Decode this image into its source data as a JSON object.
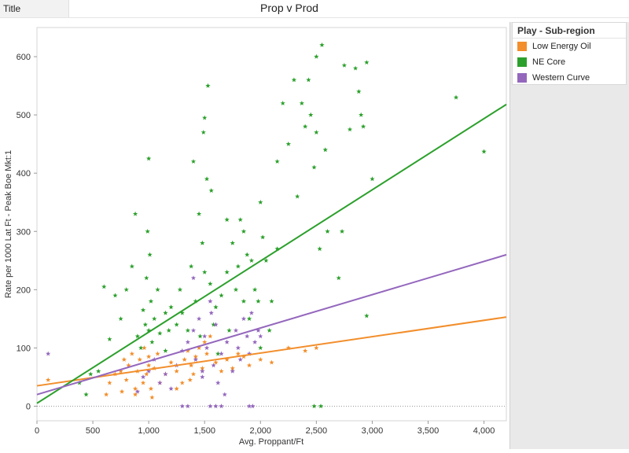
{
  "header": {
    "tab_label": "Title",
    "chart_title": "Prop v Prod"
  },
  "legend": {
    "title": "Play - Sub-region",
    "items": [
      {
        "label": "Low Energy Oil",
        "color": "#f28e2b"
      },
      {
        "label": "NE Core",
        "color": "#2ca02c"
      },
      {
        "label": "Western Curve",
        "color": "#9467bd"
      }
    ]
  },
  "chart_data": {
    "type": "scatter",
    "title": "Prop v Prod",
    "xlabel": "Avg. Proppant/Ft",
    "ylabel": "Rate per 1000 Lat Ft - Peak Boe Mkt:1",
    "xlim": [
      0,
      4200
    ],
    "ylim": [
      -25,
      650
    ],
    "x_ticks": [
      0,
      500,
      1000,
      1500,
      2000,
      2500,
      3000,
      3500,
      4000
    ],
    "x_tick_labels": [
      "0",
      "500",
      "1,000",
      "1,500",
      "2,000",
      "2,500",
      "3,000",
      "3,500",
      "4,000"
    ],
    "y_ticks": [
      0,
      100,
      200,
      300,
      400,
      500,
      600
    ],
    "y_tick_labels": [
      "0",
      "100",
      "200",
      "300",
      "400",
      "500",
      "600"
    ],
    "grid": false,
    "zero_reference_line": true,
    "marker": "star",
    "series": [
      {
        "name": "Low Energy Oil",
        "color": "#f28e2b",
        "trend": {
          "x0": 0,
          "y0": 35,
          "x1": 4200,
          "y1": 153
        },
        "points": [
          [
            100,
            45
          ],
          [
            620,
            20
          ],
          [
            650,
            40
          ],
          [
            700,
            55
          ],
          [
            750,
            60
          ],
          [
            780,
            80
          ],
          [
            800,
            45
          ],
          [
            820,
            70
          ],
          [
            850,
            90
          ],
          [
            880,
            30
          ],
          [
            900,
            60
          ],
          [
            920,
            80
          ],
          [
            950,
            40
          ],
          [
            960,
            100
          ],
          [
            980,
            55
          ],
          [
            1000,
            70
          ],
          [
            1000,
            85
          ],
          [
            1020,
            30
          ],
          [
            1050,
            65
          ],
          [
            1080,
            90
          ],
          [
            1100,
            40
          ],
          [
            1150,
            55
          ],
          [
            1200,
            75
          ],
          [
            1250,
            60
          ],
          [
            1300,
            40
          ],
          [
            1320,
            80
          ],
          [
            1350,
            95
          ],
          [
            1380,
            70
          ],
          [
            1400,
            55
          ],
          [
            1420,
            85
          ],
          [
            1450,
            100
          ],
          [
            1480,
            65
          ],
          [
            1500,
            110
          ],
          [
            1520,
            90
          ],
          [
            1550,
            120
          ],
          [
            1600,
            75
          ],
          [
            1650,
            60
          ],
          [
            1700,
            80
          ],
          [
            1750,
            65
          ],
          [
            1800,
            90
          ],
          [
            1850,
            85
          ],
          [
            1900,
            70
          ],
          [
            2000,
            80
          ],
          [
            2100,
            75
          ],
          [
            2250,
            100
          ],
          [
            2400,
            95
          ],
          [
            2500,
            100
          ],
          [
            1250,
            30
          ],
          [
            1370,
            45
          ],
          [
            1030,
            15
          ],
          [
            880,
            20
          ],
          [
            760,
            25
          ]
        ]
      },
      {
        "name": "NE Core",
        "color": "#2ca02c",
        "trend": {
          "x0": 0,
          "y0": 5,
          "x1": 4200,
          "y1": 518
        },
        "points": [
          [
            380,
            40
          ],
          [
            440,
            20
          ],
          [
            480,
            55
          ],
          [
            550,
            60
          ],
          [
            600,
            205
          ],
          [
            650,
            115
          ],
          [
            700,
            190
          ],
          [
            750,
            150
          ],
          [
            800,
            200
          ],
          [
            850,
            240
          ],
          [
            880,
            330
          ],
          [
            900,
            120
          ],
          [
            930,
            100
          ],
          [
            950,
            165
          ],
          [
            970,
            140
          ],
          [
            980,
            220
          ],
          [
            990,
            300
          ],
          [
            1000,
            425
          ],
          [
            1000,
            130
          ],
          [
            1010,
            260
          ],
          [
            1020,
            180
          ],
          [
            1030,
            110
          ],
          [
            1050,
            150
          ],
          [
            1080,
            200
          ],
          [
            1100,
            125
          ],
          [
            1150,
            95
          ],
          [
            1180,
            130
          ],
          [
            1200,
            170
          ],
          [
            1250,
            140
          ],
          [
            1280,
            200
          ],
          [
            1300,
            160
          ],
          [
            1350,
            130
          ],
          [
            1380,
            240
          ],
          [
            1400,
            420
          ],
          [
            1420,
            180
          ],
          [
            1450,
            330
          ],
          [
            1460,
            120
          ],
          [
            1480,
            280
          ],
          [
            1490,
            470
          ],
          [
            1500,
            495
          ],
          [
            1500,
            230
          ],
          [
            1520,
            390
          ],
          [
            1530,
            550
          ],
          [
            1550,
            210
          ],
          [
            1560,
            370
          ],
          [
            1580,
            140
          ],
          [
            1600,
            170
          ],
          [
            1620,
            90
          ],
          [
            1650,
            190
          ],
          [
            1700,
            230
          ],
          [
            1720,
            130
          ],
          [
            1750,
            280
          ],
          [
            1780,
            200
          ],
          [
            1800,
            240
          ],
          [
            1820,
            320
          ],
          [
            1850,
            180
          ],
          [
            1880,
            260
          ],
          [
            1900,
            150
          ],
          [
            1920,
            250
          ],
          [
            1950,
            200
          ],
          [
            1980,
            180
          ],
          [
            2000,
            100
          ],
          [
            2020,
            290
          ],
          [
            2050,
            250
          ],
          [
            2080,
            130
          ],
          [
            2100,
            180
          ],
          [
            2150,
            270
          ],
          [
            2200,
            520
          ],
          [
            2250,
            450
          ],
          [
            2300,
            560
          ],
          [
            2330,
            360
          ],
          [
            2370,
            520
          ],
          [
            2400,
            480
          ],
          [
            2430,
            560
          ],
          [
            2450,
            500
          ],
          [
            2480,
            410
          ],
          [
            2500,
            470
          ],
          [
            2500,
            600
          ],
          [
            2530,
            270
          ],
          [
            2550,
            620
          ],
          [
            2580,
            440
          ],
          [
            2600,
            300
          ],
          [
            2700,
            220
          ],
          [
            2730,
            300
          ],
          [
            2750,
            585
          ],
          [
            2800,
            475
          ],
          [
            2850,
            580
          ],
          [
            2880,
            540
          ],
          [
            2900,
            500
          ],
          [
            2920,
            480
          ],
          [
            2950,
            590
          ],
          [
            3000,
            390
          ],
          [
            2950,
            155
          ],
          [
            3750,
            530
          ],
          [
            4000,
            437
          ],
          [
            2480,
            0
          ],
          [
            2540,
            0
          ],
          [
            2000,
            350
          ],
          [
            1850,
            300
          ],
          [
            1150,
            160
          ],
          [
            1700,
            320
          ],
          [
            2150,
            420
          ]
        ]
      },
      {
        "name": "Western Curve",
        "color": "#9467bd",
        "trend": {
          "x0": 0,
          "y0": 20,
          "x1": 4200,
          "y1": 260
        },
        "points": [
          [
            100,
            90
          ],
          [
            900,
            25
          ],
          [
            950,
            50
          ],
          [
            1000,
            60
          ],
          [
            1050,
            80
          ],
          [
            1100,
            40
          ],
          [
            1150,
            55
          ],
          [
            1200,
            30
          ],
          [
            1250,
            70
          ],
          [
            1300,
            95
          ],
          [
            1350,
            110
          ],
          [
            1400,
            130
          ],
          [
            1420,
            80
          ],
          [
            1450,
            150
          ],
          [
            1480,
            60
          ],
          [
            1500,
            120
          ],
          [
            1520,
            100
          ],
          [
            1550,
            180
          ],
          [
            1580,
            70
          ],
          [
            1600,
            140
          ],
          [
            1620,
            40
          ],
          [
            1650,
            90
          ],
          [
            1680,
            20
          ],
          [
            1700,
            110
          ],
          [
            1750,
            60
          ],
          [
            1780,
            130
          ],
          [
            1800,
            100
          ],
          [
            1820,
            80
          ],
          [
            1850,
            150
          ],
          [
            1880,
            120
          ],
          [
            1900,
            90
          ],
          [
            1920,
            160
          ],
          [
            1950,
            110
          ],
          [
            1980,
            130
          ],
          [
            2000,
            120
          ],
          [
            1600,
            0
          ],
          [
            1650,
            0
          ],
          [
            1900,
            0
          ],
          [
            1930,
            0
          ],
          [
            1550,
            0
          ],
          [
            1300,
            0
          ],
          [
            1350,
            0
          ],
          [
            1480,
            50
          ],
          [
            1400,
            220
          ],
          [
            1560,
            160
          ]
        ]
      }
    ]
  }
}
